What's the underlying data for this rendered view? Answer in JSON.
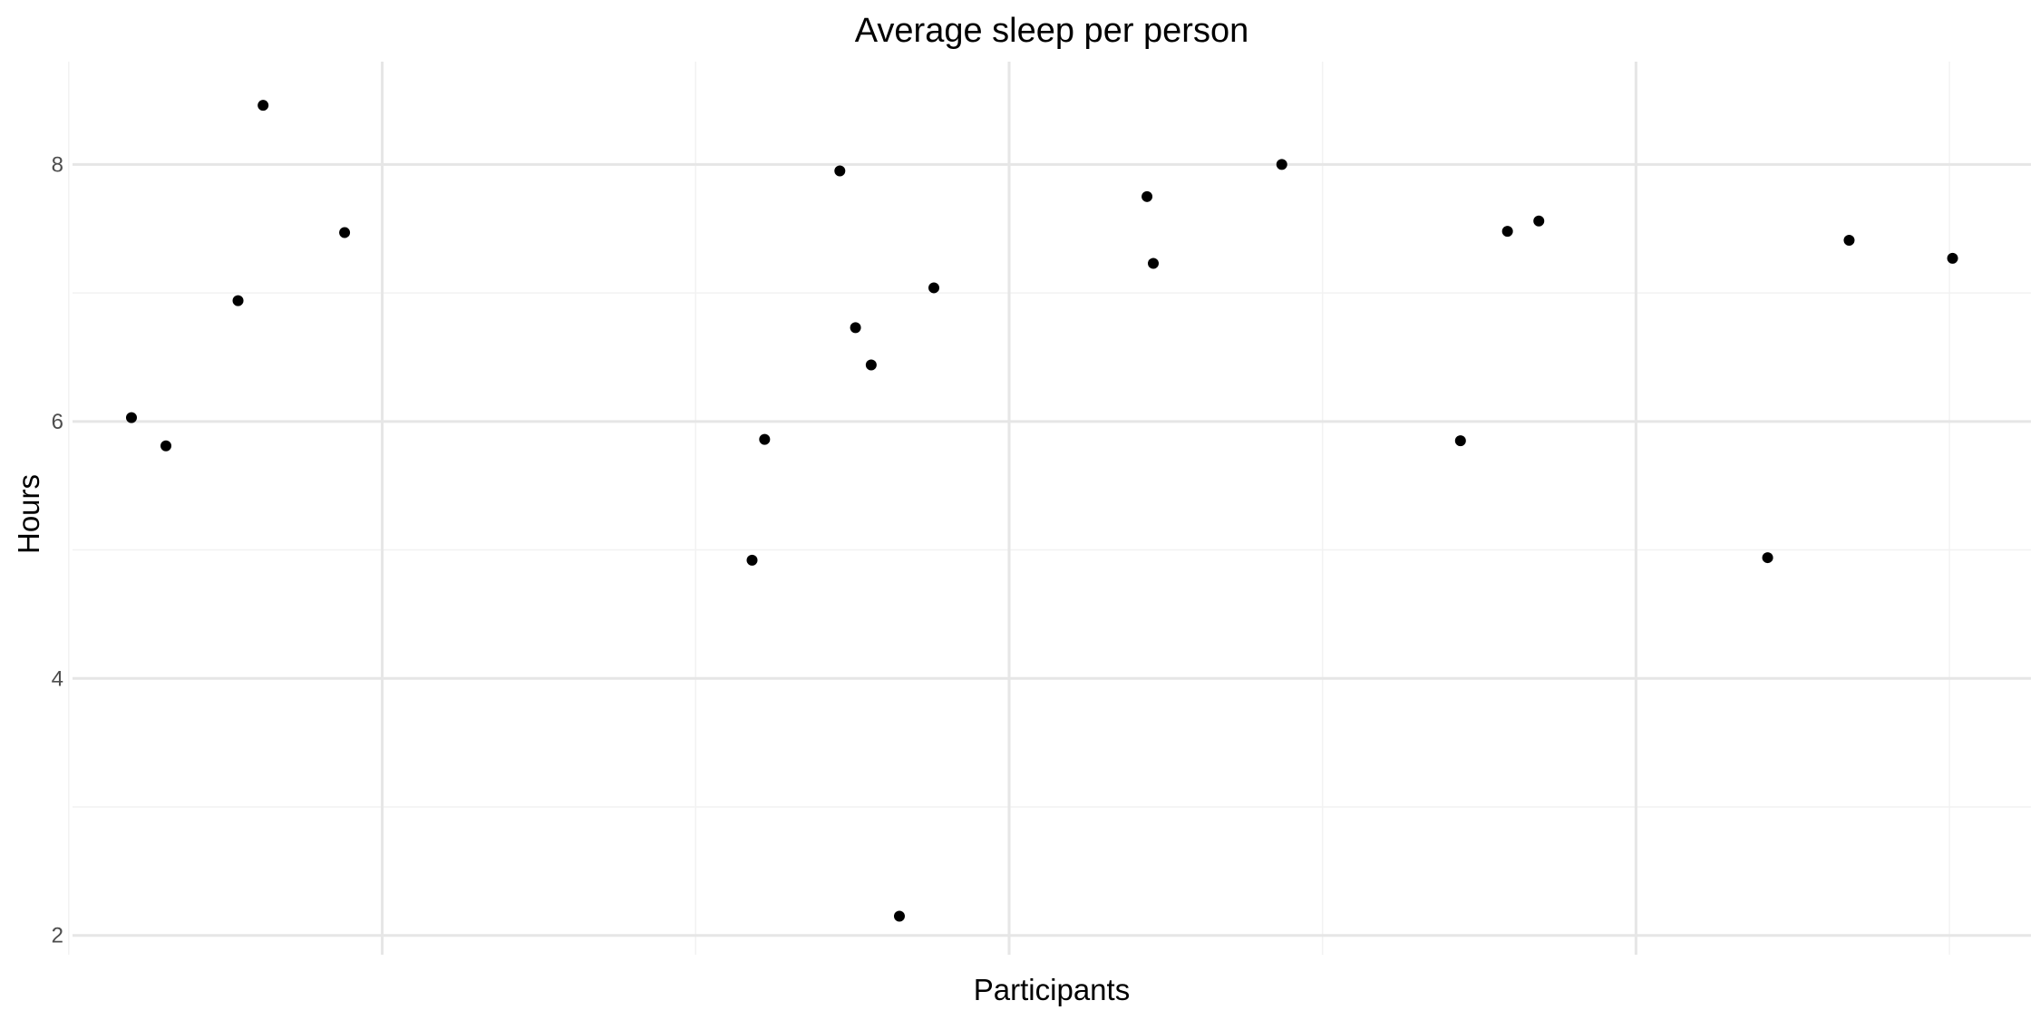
{
  "chart_data": {
    "type": "scatter",
    "title": "Average sleep per person",
    "xlabel": "Participants",
    "ylabel": "Hours",
    "x_tick_labels_shown": false,
    "xlim": [
      0.06,
      31.3
    ],
    "ylim": [
      1.85,
      8.8
    ],
    "yticks": [
      2,
      4,
      6,
      8
    ],
    "y_minor_ticks": [
      3,
      5,
      7
    ],
    "x_major_gridlines": [
      5,
      15,
      25
    ],
    "x_minor_gridlines": [
      0,
      10,
      20,
      30
    ],
    "grid": true,
    "legend": "none",
    "colors": {
      "point": "#000000",
      "grid_major": "#e6e6e6",
      "grid_minor": "#f2f2f2",
      "tick_text": "#4d4d4d"
    },
    "points": [
      {
        "x": 1.0,
        "y": 6.03
      },
      {
        "x": 1.55,
        "y": 5.81
      },
      {
        "x": 2.7,
        "y": 6.94
      },
      {
        "x": 3.1,
        "y": 8.46
      },
      {
        "x": 4.4,
        "y": 7.47
      },
      {
        "x": 10.9,
        "y": 4.92
      },
      {
        "x": 11.1,
        "y": 5.86
      },
      {
        "x": 12.3,
        "y": 7.95
      },
      {
        "x": 12.55,
        "y": 6.73
      },
      {
        "x": 12.8,
        "y": 6.44
      },
      {
        "x": 13.25,
        "y": 2.15
      },
      {
        "x": 13.8,
        "y": 7.04
      },
      {
        "x": 17.2,
        "y": 7.75
      },
      {
        "x": 17.3,
        "y": 7.23
      },
      {
        "x": 19.35,
        "y": 8.0
      },
      {
        "x": 22.2,
        "y": 5.85
      },
      {
        "x": 22.95,
        "y": 7.48
      },
      {
        "x": 23.45,
        "y": 7.56
      },
      {
        "x": 27.1,
        "y": 4.94
      },
      {
        "x": 28.4,
        "y": 7.41
      },
      {
        "x": 30.05,
        "y": 7.27
      }
    ]
  }
}
